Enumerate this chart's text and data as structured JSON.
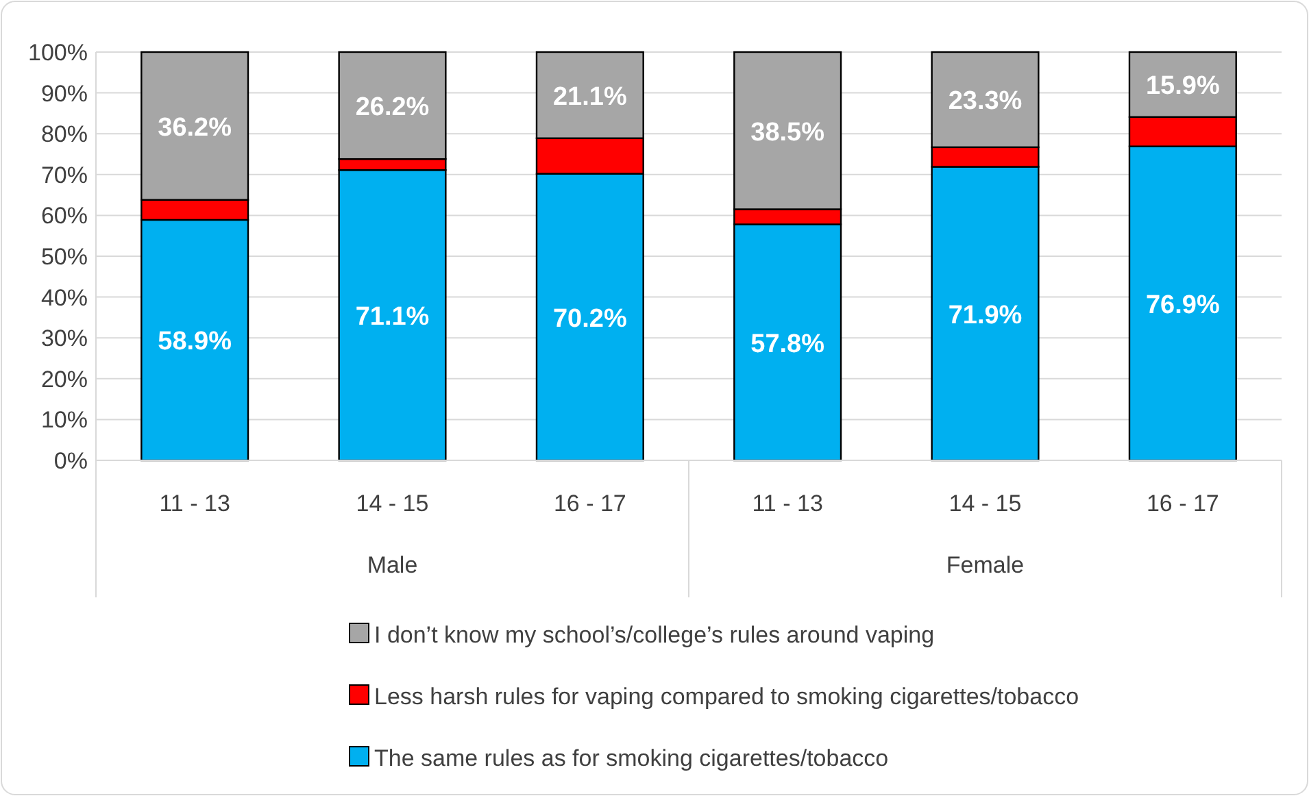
{
  "chart_data": {
    "type": "bar",
    "stacked": true,
    "categories": [
      "11 - 13",
      "14 - 15",
      "16 - 17",
      "11 - 13",
      "14 - 15",
      "16 - 17"
    ],
    "series": [
      {
        "name": "The same rules as for smoking cigarettes/tobacco",
        "color": "#00b0f0",
        "values": [
          58.9,
          71.1,
          70.2,
          57.8,
          71.9,
          76.9
        ],
        "value_labels": [
          "58.9%",
          "71.1%",
          "70.2%",
          "57.8%",
          "71.9%",
          "76.9%"
        ]
      },
      {
        "name": "Less harsh rules for vaping compared to smoking cigarettes/tobacco",
        "color": "#ff0000",
        "values": [
          4.9,
          2.7,
          8.7,
          3.7,
          4.8,
          7.2
        ]
      },
      {
        "name": "I don’t know my school’s/college’s rules around vaping",
        "color": "#a6a6a6",
        "values": [
          36.2,
          26.2,
          21.1,
          38.5,
          23.3,
          15.9
        ],
        "value_labels": [
          "36.2%",
          "26.2%",
          "21.1%",
          "38.5%",
          "23.3%",
          "15.9%"
        ]
      }
    ],
    "ylim": [
      0,
      100
    ],
    "yticks": [
      {
        "value": 0,
        "label": "0%"
      },
      {
        "value": 10,
        "label": "10%"
      },
      {
        "value": 20,
        "label": "20%"
      },
      {
        "value": 30,
        "label": "30%"
      },
      {
        "value": 40,
        "label": "40%"
      },
      {
        "value": 50,
        "label": "50%"
      },
      {
        "value": 60,
        "label": "60%"
      },
      {
        "value": 70,
        "label": "70%"
      },
      {
        "value": 80,
        "label": "80%"
      },
      {
        "value": 90,
        "label": "90%"
      },
      {
        "value": 100,
        "label": "100%"
      }
    ],
    "grid": "y",
    "legend": "bottom",
    "annotations": [
      "Male",
      "Female"
    ]
  }
}
